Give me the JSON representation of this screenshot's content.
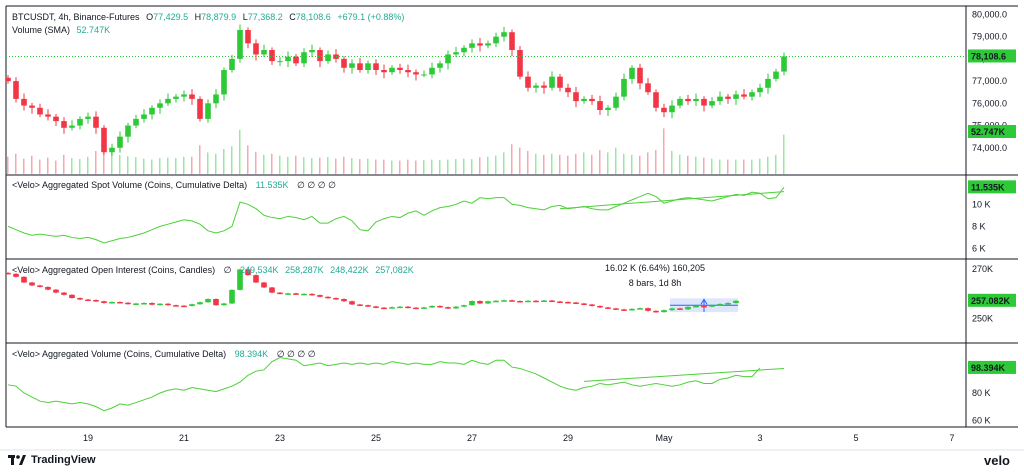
{
  "header": {
    "symbol_line": "BTCUSDT, 4h, Binance-Futures",
    "ohlc": [
      {
        "k": "O",
        "v": "77,429.5"
      },
      {
        "k": "H",
        "v": "78,879.9"
      },
      {
        "k": "L",
        "v": "77,368.2"
      },
      {
        "k": "C",
        "v": "78,108.6"
      }
    ],
    "change": "+679.1 (+0.88%)",
    "volume_label": "Volume (SMA)",
    "volume_value": "52.747K"
  },
  "colors": {
    "up": "#22ab94",
    "up_bright": "#2dc937",
    "down": "#f23645",
    "line": "#4cd137",
    "last_price_bg": "#2dc937",
    "text": "#131722",
    "grid": "#e0e3eb",
    "measure_box": "#b3c7f7"
  },
  "footer": {
    "brand_left": "TradingView",
    "brand_right": "velo"
  },
  "x_axis": {
    "ticks": [
      {
        "label": "19",
        "t": 10
      },
      {
        "label": "21",
        "t": 22
      },
      {
        "label": "23",
        "t": 34
      },
      {
        "label": "25",
        "t": 46
      },
      {
        "label": "27",
        "t": 58
      },
      {
        "label": "29",
        "t": 70
      },
      {
        "label": "May",
        "t": 82
      },
      {
        "label": "3",
        "t": 94
      },
      {
        "label": "5",
        "t": 106
      },
      {
        "label": "7",
        "t": 118
      }
    ]
  },
  "chart_data": [
    {
      "type": "candlestick",
      "title": "BTCUSDT, 4h, Binance-Futures",
      "ylim": [
        73000,
        80200
      ],
      "y_ticks": [
        74000,
        75000,
        76000,
        77000,
        78000,
        79000,
        80000
      ],
      "y_tick_labels": [
        "74,000.0",
        "75,000.0",
        "76,000.0",
        "77,000.0",
        "78,000.0",
        "79,000.0",
        "80,000.0"
      ],
      "last_price": 78108.6,
      "last_price_label": "78,108.6",
      "volume_last_label": "52.747K",
      "closes": [
        77000,
        76200,
        75900,
        75800,
        75500,
        75400,
        75200,
        74900,
        75000,
        75300,
        75400,
        74900,
        73800,
        74000,
        74500,
        75000,
        75300,
        75500,
        75800,
        76000,
        76200,
        76300,
        76400,
        76200,
        75300,
        76000,
        76400,
        77500,
        78000,
        79300,
        78700,
        78200,
        78400,
        77900,
        77900,
        78100,
        77800,
        78300,
        78400,
        77900,
        78200,
        78000,
        77600,
        77800,
        77500,
        77800,
        77500,
        77400,
        77600,
        77500,
        77400,
        77300,
        77300,
        77600,
        77800,
        78200,
        78300,
        78500,
        78700,
        78600,
        78700,
        79000,
        79200,
        78400,
        77200,
        76700,
        76800,
        76700,
        77200,
        76700,
        76500,
        76100,
        76200,
        76100,
        75700,
        75800,
        76300,
        77100,
        77600,
        76900,
        76500,
        75800,
        75600,
        75900,
        76200,
        76100,
        76200,
        75900,
        76100,
        76300,
        76200,
        76400,
        76300,
        76500,
        76700,
        77100,
        77429.5,
        78108.6
      ],
      "volumes": [
        0.36,
        0.42,
        0.32,
        0.38,
        0.3,
        0.34,
        0.28,
        0.4,
        0.33,
        0.31,
        0.36,
        0.48,
        0.62,
        0.52,
        0.4,
        0.37,
        0.35,
        0.32,
        0.3,
        0.33,
        0.34,
        0.33,
        0.36,
        0.36,
        0.6,
        0.45,
        0.42,
        0.52,
        0.58,
        0.92,
        0.6,
        0.46,
        0.4,
        0.42,
        0.38,
        0.36,
        0.38,
        0.35,
        0.33,
        0.34,
        0.35,
        0.32,
        0.36,
        0.33,
        0.31,
        0.32,
        0.3,
        0.3,
        0.28,
        0.28,
        0.3,
        0.28,
        0.29,
        0.3,
        0.29,
        0.3,
        0.31,
        0.32,
        0.31,
        0.35,
        0.36,
        0.38,
        0.45,
        0.62,
        0.55,
        0.48,
        0.42,
        0.4,
        0.42,
        0.4,
        0.38,
        0.42,
        0.45,
        0.4,
        0.5,
        0.45,
        0.55,
        0.42,
        0.4,
        0.38,
        0.45,
        0.5,
        0.95,
        0.48,
        0.4,
        0.38,
        0.36,
        0.34,
        0.32,
        0.3,
        0.3,
        0.3,
        0.3,
        0.3,
        0.32,
        0.36,
        0.4,
        0.82
      ]
    },
    {
      "type": "line",
      "title": "<Velo> Aggregated Spot Volume (Coins, Cumulative Delta)",
      "legend_symbols": "∅ ∅ ∅ ∅",
      "last_value_label": "11.535K",
      "ylim": [
        5500,
        12200
      ],
      "y_ticks": [
        6000,
        8000,
        10000
      ],
      "y_tick_labels": [
        "6 K",
        "8 K",
        "10 K"
      ],
      "values": [
        8000,
        7700,
        7400,
        7200,
        7300,
        7200,
        7100,
        7200,
        7000,
        6900,
        7000,
        6800,
        6500,
        6700,
        6900,
        7000,
        7200,
        7400,
        7700,
        8000,
        8200,
        8400,
        8600,
        8500,
        8200,
        7600,
        7400,
        7600,
        8000,
        10200,
        10000,
        9600,
        9000,
        8800,
        8700,
        8900,
        8800,
        8600,
        8900,
        8300,
        8300,
        8700,
        8900,
        8500,
        7700,
        7600,
        8400,
        8700,
        8900,
        8800,
        9200,
        9400,
        9000,
        9400,
        9700,
        9800,
        10000,
        10300,
        10100,
        10600,
        10500,
        10600,
        10600,
        10000,
        9900,
        9700,
        9600,
        9500,
        9800,
        9900,
        9600,
        9700,
        9800,
        9600,
        9500,
        9500,
        9800,
        10100,
        10400,
        10700,
        11000,
        10700,
        10100,
        10300,
        10500,
        10600,
        10500,
        10400,
        10300,
        10500,
        10700,
        10900,
        10800,
        11100,
        11000,
        10500,
        10600,
        11535
      ],
      "trendline": {
        "from": [
          69,
          9600
        ],
        "to": [
          97,
          11150
        ]
      }
    },
    {
      "type": "candlestick",
      "title": "<Velo> Aggregated Open Interest (Coins, Candles)",
      "legend_symbols": "∅",
      "legend_values": [
        "249,534K",
        "258,287K",
        "248,422K",
        "257,082K"
      ],
      "last_value_label": "257.082K",
      "ylim": [
        242000,
        272000
      ],
      "y_ticks": [
        250000,
        270000
      ],
      "y_tick_labels": [
        "250K",
        "270K"
      ],
      "closes": [
        268000,
        266800,
        264500,
        263300,
        262700,
        261600,
        260400,
        259500,
        258200,
        257600,
        257400,
        256900,
        256200,
        256600,
        256300,
        255800,
        256000,
        256200,
        255500,
        255900,
        255300,
        255100,
        255000,
        255700,
        256500,
        257800,
        255300,
        256000,
        261500,
        269800,
        267500,
        264500,
        262500,
        260400,
        260000,
        260100,
        259700,
        259900,
        259400,
        258700,
        258200,
        257800,
        256900,
        255600,
        255300,
        254800,
        254300,
        254200,
        254500,
        254700,
        254300,
        254100,
        254400,
        255000,
        254500,
        254000,
        254700,
        255300,
        257000,
        256000,
        256900,
        257100,
        257300,
        257000,
        256900,
        257100,
        257000,
        257200,
        256800,
        256600,
        256400,
        256000,
        255600,
        255000,
        254400,
        254000,
        253600,
        253300,
        253800,
        254100,
        253000,
        252500,
        253300,
        254000,
        253600,
        254600,
        255000,
        254700,
        255300,
        255800,
        256200,
        257082
      ],
      "measure": {
        "line1": "16.02 K (6.64%) 160,205",
        "line2": "8 bars, 1d 8h",
        "from_bar": 83,
        "to_bar": 91
      }
    },
    {
      "type": "line",
      "title": "<Velo> Aggregated Volume (Coins, Cumulative Delta)",
      "legend_value": "98.394K",
      "legend_symbols": "∅ ∅ ∅ ∅",
      "last_value_label": "98.394K",
      "ylim": [
        58000,
        113000
      ],
      "y_ticks": [
        60000,
        80000
      ],
      "y_tick_labels": [
        "60 K",
        "80 K"
      ],
      "values": [
        86000,
        85000,
        80000,
        77000,
        74000,
        73000,
        74000,
        73000,
        72000,
        73000,
        72000,
        70000,
        67000,
        69000,
        72000,
        71000,
        73000,
        75000,
        77000,
        80000,
        82000,
        83000,
        82000,
        84000,
        83000,
        82000,
        81000,
        83000,
        85000,
        88000,
        93000,
        96000,
        97000,
        103000,
        106000,
        105000,
        104000,
        100000,
        101000,
        102000,
        100000,
        101000,
        102000,
        101000,
        102000,
        101000,
        102000,
        101000,
        103000,
        102000,
        101000,
        102000,
        101000,
        101000,
        103000,
        102000,
        102000,
        101000,
        104000,
        102000,
        101000,
        104000,
        104000,
        99000,
        98000,
        96000,
        94000,
        91000,
        88000,
        85000,
        83000,
        82000,
        84000,
        85000,
        87000,
        86000,
        87000,
        88000,
        86000,
        85000,
        86000,
        87000,
        86000,
        85000,
        86000,
        88000,
        89000,
        87000,
        87000,
        90000,
        91000,
        93000,
        92000,
        92000,
        98394
      ],
      "trendline": {
        "from": [
          72,
          88500
        ],
        "to": [
          97,
          98000
        ]
      }
    }
  ]
}
